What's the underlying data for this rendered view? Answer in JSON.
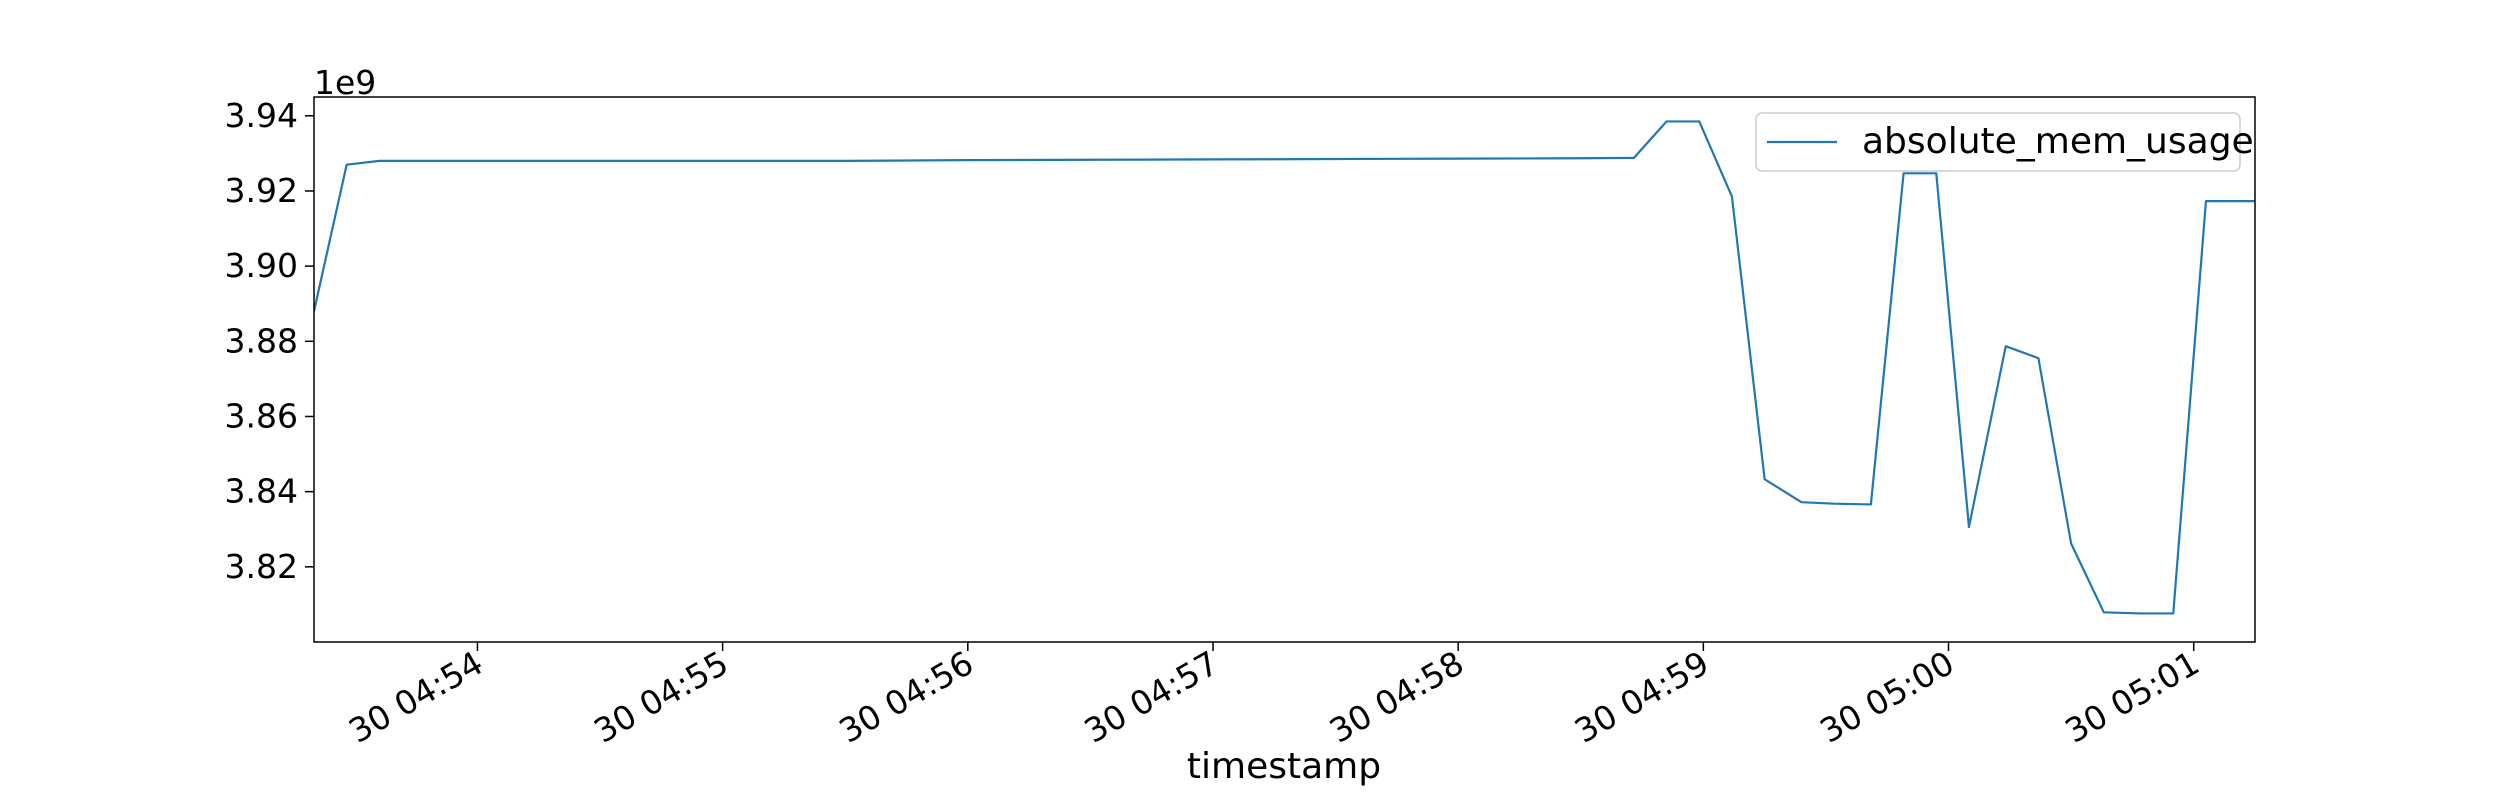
{
  "chart_data": {
    "type": "line",
    "xlabel": "timestamp",
    "ylabel": "",
    "y_offset_label": "1e9",
    "y_multiplier": 1000000000,
    "x_unit": "datetime",
    "x_range": [
      "2024-01-30 04:53:20",
      "2024-01-30 05:01:15"
    ],
    "y_range": [
      3.8,
      3.945
    ],
    "x_tick_labels": [
      {
        "at": "2024-01-30 04:54:00",
        "label": "30 04:54"
      },
      {
        "at": "2024-01-30 04:55:00",
        "label": "30 04:55"
      },
      {
        "at": "2024-01-30 04:56:00",
        "label": "30 04:56"
      },
      {
        "at": "2024-01-30 04:57:00",
        "label": "30 04:57"
      },
      {
        "at": "2024-01-30 04:58:00",
        "label": "30 04:58"
      },
      {
        "at": "2024-01-30 04:59:00",
        "label": "30 04:59"
      },
      {
        "at": "2024-01-30 05:00:00",
        "label": "30 05:00"
      },
      {
        "at": "2024-01-30 05:01:00",
        "label": "30 05:01"
      }
    ],
    "y_ticks": [
      {
        "value": 3.82,
        "label": "3.82"
      },
      {
        "value": 3.84,
        "label": "3.84"
      },
      {
        "value": 3.86,
        "label": "3.86"
      },
      {
        "value": 3.88,
        "label": "3.88"
      },
      {
        "value": 3.9,
        "label": "3.90"
      },
      {
        "value": 3.92,
        "label": "3.92"
      },
      {
        "value": 3.94,
        "label": "3.94"
      }
    ],
    "grid": false,
    "legend_position": "upper right",
    "colors": {
      "series": "#1f77b4",
      "axis": "#000000"
    },
    "series": [
      {
        "name": "absolute_mem_usage",
        "points": [
          [
            "2024-01-30 04:53:20",
            3.888
          ],
          [
            "2024-01-30 04:53:28",
            3.927
          ],
          [
            "2024-01-30 04:53:36",
            3.928
          ],
          [
            "2024-01-30 04:54:00",
            3.928
          ],
          [
            "2024-01-30 04:54:30",
            3.928
          ],
          [
            "2024-01-30 04:55:00",
            3.928
          ],
          [
            "2024-01-30 04:55:30",
            3.928
          ],
          [
            "2024-01-30 04:56:00",
            3.9282
          ],
          [
            "2024-01-30 04:56:30",
            3.9283
          ],
          [
            "2024-01-30 04:57:00",
            3.9284
          ],
          [
            "2024-01-30 04:57:30",
            3.9285
          ],
          [
            "2024-01-30 04:58:00",
            3.9286
          ],
          [
            "2024-01-30 04:58:30",
            3.9287
          ],
          [
            "2024-01-30 04:58:43",
            3.9288
          ],
          [
            "2024-01-30 04:58:51",
            3.9385
          ],
          [
            "2024-01-30 04:58:59",
            3.9385
          ],
          [
            "2024-01-30 04:59:07",
            3.9185
          ],
          [
            "2024-01-30 04:59:15",
            3.8433
          ],
          [
            "2024-01-30 04:59:24",
            3.8372
          ],
          [
            "2024-01-30 04:59:32",
            3.8368
          ],
          [
            "2024-01-30 04:59:41",
            3.8366
          ],
          [
            "2024-01-30 04:59:49",
            3.9247
          ],
          [
            "2024-01-30 04:59:57",
            3.9247
          ],
          [
            "2024-01-30 05:00:05",
            3.8306
          ],
          [
            "2024-01-30 05:00:14",
            3.8787
          ],
          [
            "2024-01-30 05:00:22",
            3.8755
          ],
          [
            "2024-01-30 05:00:30",
            3.8262
          ],
          [
            "2024-01-30 05:00:38",
            3.8079
          ],
          [
            "2024-01-30 05:00:47",
            3.8076
          ],
          [
            "2024-01-30 05:00:55",
            3.8076
          ],
          [
            "2024-01-30 05:01:03",
            3.9173
          ],
          [
            "2024-01-30 05:01:15",
            3.9173
          ]
        ]
      }
    ]
  }
}
